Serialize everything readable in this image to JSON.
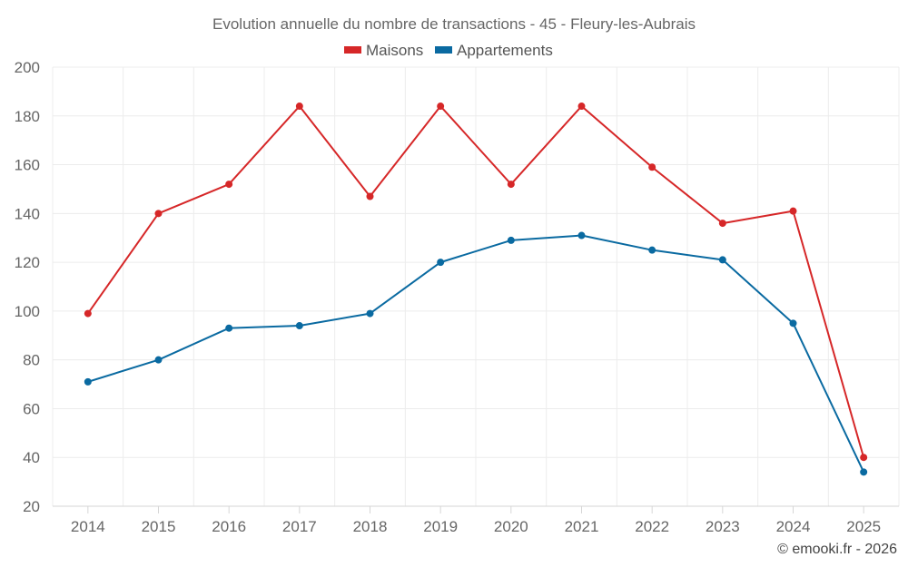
{
  "chart_data": {
    "type": "line",
    "title": "Evolution annuelle du nombre de transactions - 45 - Fleury-les-Aubrais",
    "categories": [
      "2014",
      "2015",
      "2016",
      "2017",
      "2018",
      "2019",
      "2020",
      "2021",
      "2022",
      "2023",
      "2024",
      "2025"
    ],
    "series": [
      {
        "name": "Maisons",
        "color": "#d62728",
        "values": [
          99,
          140,
          152,
          184,
          147,
          184,
          152,
          184,
          159,
          136,
          141,
          40
        ]
      },
      {
        "name": "Appartements",
        "color": "#0a6aa1",
        "values": [
          71,
          80,
          93,
          94,
          99,
          120,
          129,
          131,
          125,
          121,
          95,
          34
        ]
      }
    ],
    "yticks": [
      20,
      40,
      60,
      80,
      100,
      120,
      140,
      160,
      180,
      200
    ],
    "ylim": [
      20,
      200
    ],
    "grid": true,
    "legend_position": "top-center",
    "xlabel": "",
    "ylabel": ""
  },
  "credit": "© emooki.fr - 2026"
}
